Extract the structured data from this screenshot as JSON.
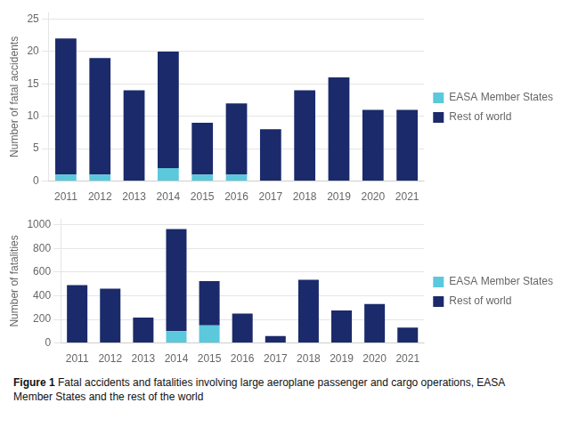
{
  "chart_data": [
    {
      "type": "bar",
      "categories": [
        "2011",
        "2012",
        "2013",
        "2014",
        "2015",
        "2016",
        "2017",
        "2018",
        "2019",
        "2020",
        "2021"
      ],
      "series": [
        {
          "name": "EASA Member States",
          "color": "#5bc8dc",
          "values": [
            1,
            1,
            0,
            2,
            1,
            1,
            0,
            0,
            0,
            0,
            0
          ]
        },
        {
          "name": "Rest of world",
          "color": "#1b2a6b",
          "values": [
            21,
            18,
            14,
            18,
            8,
            11,
            8,
            14,
            16,
            11,
            11
          ]
        }
      ],
      "ylabel": "Number of fatal accidents",
      "ylim": [
        0,
        26
      ],
      "yticks": [
        0,
        5,
        10,
        15,
        20,
        25
      ],
      "grid": "y",
      "stacked": true,
      "legend": "right"
    },
    {
      "type": "bar",
      "categories": [
        "2011",
        "2012",
        "2013",
        "2014",
        "2015",
        "2016",
        "2017",
        "2018",
        "2019",
        "2020",
        "2021"
      ],
      "series": [
        {
          "name": "EASA Member States",
          "color": "#5bc8dc",
          "values": [
            0,
            0,
            0,
            100,
            150,
            0,
            0,
            0,
            0,
            0,
            0
          ]
        },
        {
          "name": "Rest of world",
          "color": "#1b2a6b",
          "values": [
            490,
            460,
            215,
            865,
            375,
            250,
            60,
            535,
            275,
            330,
            130
          ]
        }
      ],
      "ylabel": "Number of fatalities",
      "ylim": [
        0,
        1050
      ],
      "yticks": [
        0,
        200,
        400,
        600,
        800,
        1000
      ],
      "grid": "y",
      "stacked": true,
      "legend": "right",
      "annotations": [
        "Figure 1",
        "Fatal accidents and fatalities involving large aeroplane passenger and cargo operations, EASA",
        "Member States and the rest of the world"
      ]
    }
  ]
}
